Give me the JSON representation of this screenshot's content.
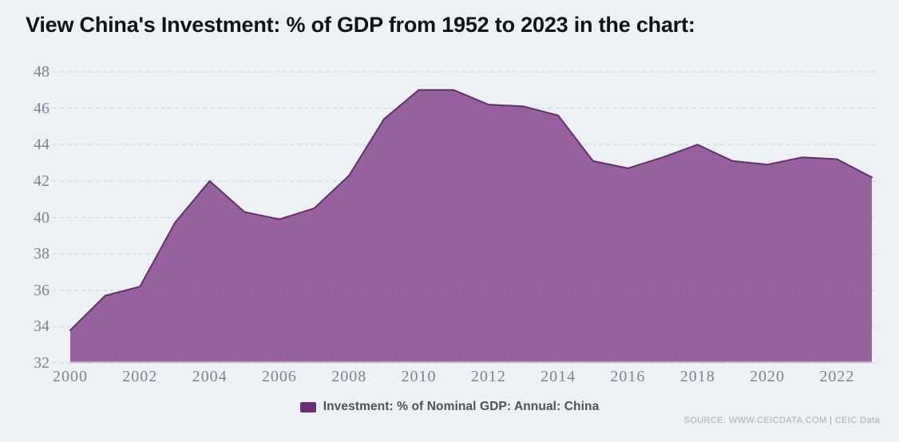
{
  "page": {
    "title": "View China's Investment: % of GDP from 1952 to 2023 in the chart:",
    "background_color": "#edf1f6"
  },
  "chart_data": {
    "type": "area",
    "title": "View China's Investment: % of GDP from 1952 to 2023 in the chart:",
    "x": [
      2000,
      2001,
      2002,
      2003,
      2004,
      2005,
      2006,
      2007,
      2008,
      2009,
      2010,
      2011,
      2012,
      2013,
      2014,
      2015,
      2016,
      2017,
      2018,
      2019,
      2020,
      2021,
      2022,
      2023
    ],
    "series": [
      {
        "name": "Investment: % of Nominal GDP: Annual: China",
        "values": [
          33.8,
          35.7,
          36.2,
          39.7,
          42.0,
          40.3,
          39.9,
          40.5,
          42.3,
          45.4,
          47.0,
          47.0,
          46.2,
          46.1,
          45.6,
          43.1,
          42.7,
          43.3,
          44.0,
          43.1,
          42.9,
          43.3,
          43.2,
          42.2
        ]
      }
    ],
    "xlabel": "",
    "ylabel": "",
    "ylim": [
      32,
      48
    ],
    "xlim": [
      2000,
      2023
    ],
    "yticks": [
      32,
      34,
      36,
      38,
      40,
      42,
      44,
      46,
      48
    ],
    "xticks": [
      2000,
      2002,
      2004,
      2006,
      2008,
      2010,
      2012,
      2014,
      2016,
      2018,
      2020,
      2022
    ],
    "grid": "horizontal-dashed",
    "legend_position": "bottom-center",
    "colors": {
      "area_fill": "#96619e",
      "line_stroke": "#5e3266",
      "legend_swatch": "#6a2e75",
      "grid_dash": "rgba(73,79,92,0.18)",
      "baseline_highlight": "rgba(255,255,255,0.5)",
      "tick_label": "#7d838b",
      "background": "#edf1f6"
    }
  },
  "legend": {
    "label": "Investment: % of Nominal GDP: Annual: China"
  },
  "source": {
    "text": "SOURCE: WWW.CEICDATA.COM | CEIC Data"
  }
}
